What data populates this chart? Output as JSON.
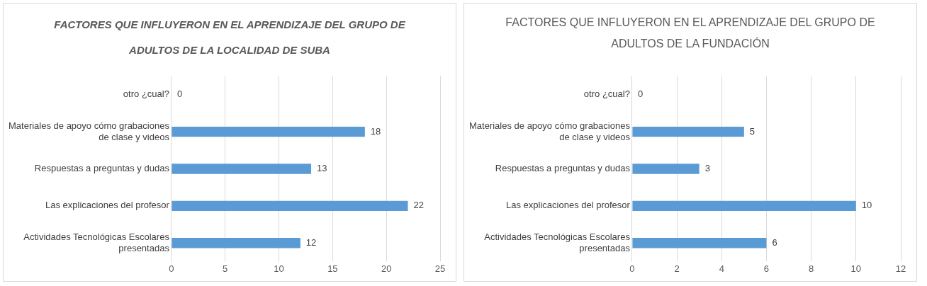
{
  "chart_data": [
    {
      "type": "bar",
      "orientation": "horizontal",
      "title": "FACTORES QUE INFLUYERON EN EL APRENDIZAJE DEL GRUPO DE ADULTOS DE LA LOCALIDAD DE SUBA",
      "categories": [
        "otro ¿cual?",
        "Materiales de apoyo cómo grabaciones de clase y videos",
        "Respuestas a preguntas y dudas",
        "Las explicaciones del profesor",
        "Actividades Tecnológicas Escolares presentadas"
      ],
      "values": [
        0,
        18,
        13,
        22,
        12
      ],
      "color": "#5b9bd5",
      "xlim": [
        0,
        25
      ],
      "xticks": [
        0,
        5,
        10,
        15,
        20,
        25
      ],
      "grid": "x",
      "data_labels": true
    },
    {
      "type": "bar",
      "orientation": "horizontal",
      "title": "FACTORES QUE INFLUYERON EN EL APRENDIZAJE DEL GRUPO DE ADULTOS DE LA FUNDACIÓN",
      "categories": [
        "otro ¿cual?",
        "Materiales de apoyo cómo grabaciones de clase y videos",
        "Respuestas a preguntas y dudas",
        "Las explicaciones del profesor",
        "Actividades Tecnológicas Escolares presentadas"
      ],
      "values": [
        0,
        5,
        3,
        10,
        6
      ],
      "color": "#5b9bd5",
      "xlim": [
        0,
        12
      ],
      "xticks": [
        0,
        2,
        4,
        6,
        8,
        10,
        12
      ],
      "grid": "x",
      "data_labels": true
    }
  ]
}
